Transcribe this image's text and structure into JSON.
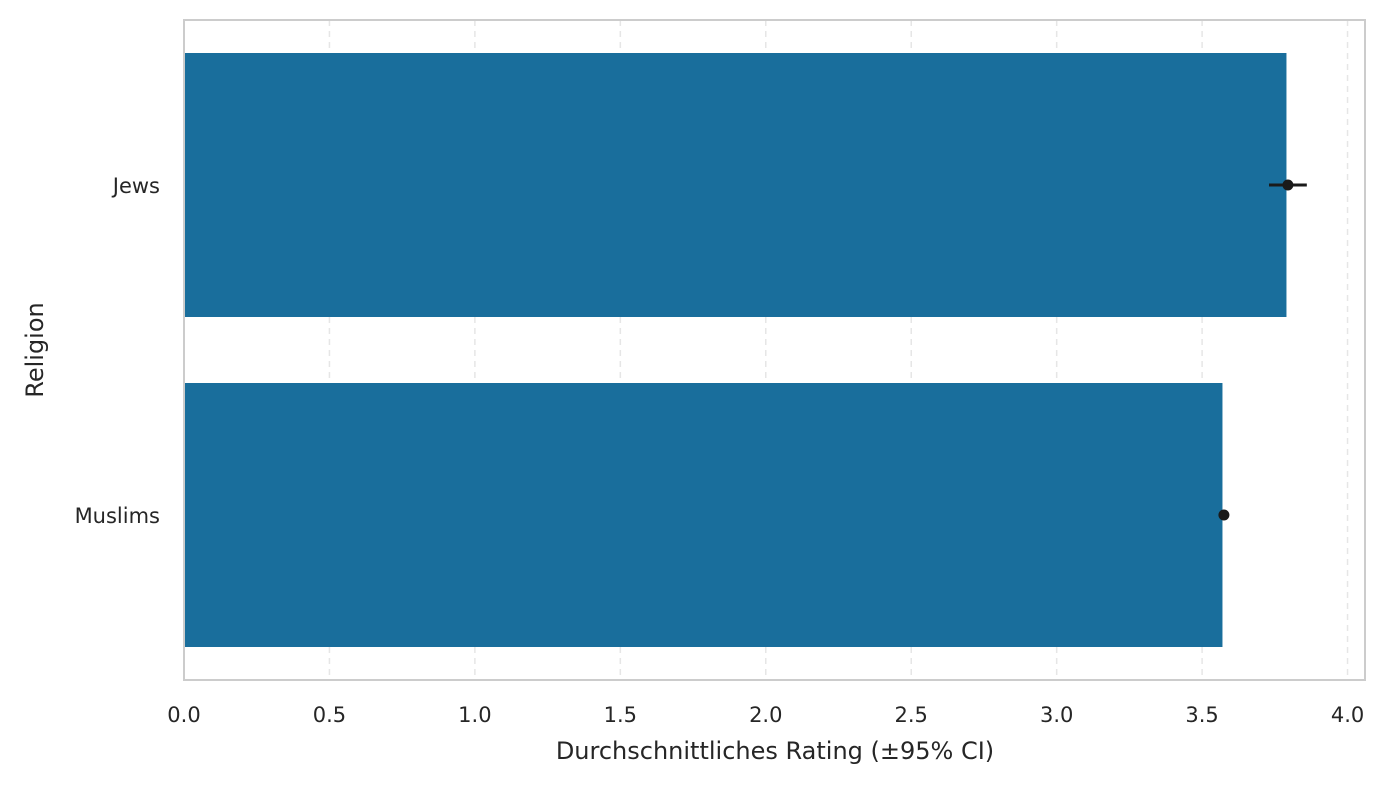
{
  "chart_data": {
    "type": "bar",
    "orientation": "horizontal",
    "categories": [
      "Jews",
      "Muslims"
    ],
    "values": [
      3.79,
      3.57
    ],
    "error_center": [
      3.795,
      3.575
    ],
    "ci_low": [
      3.73,
      3.56
    ],
    "ci_high": [
      3.86,
      3.59
    ],
    "xlabel": "Durchschnittliches Rating (±95% CI)",
    "ylabel": "Religion",
    "xlim": [
      0,
      4.06
    ],
    "xticks": [
      0.0,
      0.5,
      1.0,
      1.5,
      2.0,
      2.5,
      3.0,
      3.5,
      4.0
    ],
    "xtick_labels": [
      "0.0",
      "0.5",
      "1.0",
      "1.5",
      "2.0",
      "2.5",
      "3.0",
      "3.5",
      "4.0"
    ],
    "grid": "x, dashed",
    "colors": {
      "bar": "#196e9c",
      "errorbar": "#1a1a1a",
      "grid": "#e6e6e6",
      "frame": "#cccccc",
      "text": "#262626"
    }
  }
}
